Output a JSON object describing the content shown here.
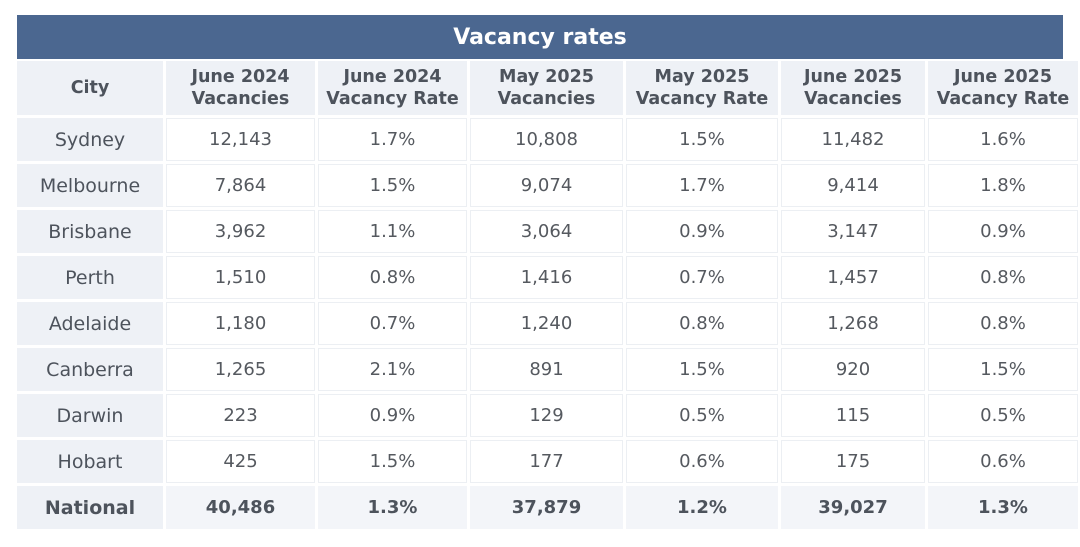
{
  "table": {
    "title": "Vacancy rates",
    "headers": [
      "City",
      "June 2024\nVacancies",
      "June 2024\nVacancy Rate",
      "May 2025\nVacancies",
      "May 2025\nVacancy Rate",
      "June 2025\nVacancies",
      "June 2025\nVacancy Rate"
    ],
    "rows": [
      [
        "Sydney",
        "12,143",
        "1.7%",
        "10,808",
        "1.5%",
        "11,482",
        "1.6%"
      ],
      [
        "Melbourne",
        "7,864",
        "1.5%",
        "9,074",
        "1.7%",
        "9,414",
        "1.8%"
      ],
      [
        "Brisbane",
        "3,962",
        "1.1%",
        "3,064",
        "0.9%",
        "3,147",
        "0.9%"
      ],
      [
        "Perth",
        "1,510",
        "0.8%",
        "1,416",
        "0.7%",
        "1,457",
        "0.8%"
      ],
      [
        "Adelaide",
        "1,180",
        "0.7%",
        "1,240",
        "0.8%",
        "1,268",
        "0.8%"
      ],
      [
        "Canberra",
        "1,265",
        "2.1%",
        "891",
        "1.5%",
        "920",
        "1.5%"
      ],
      [
        "Darwin",
        "223",
        "0.9%",
        "129",
        "0.5%",
        "115",
        "0.5%"
      ],
      [
        "Hobart",
        "425",
        "1.5%",
        "177",
        "0.6%",
        "175",
        "0.6%"
      ]
    ],
    "total": [
      "National",
      "40,486",
      "1.3%",
      "37,879",
      "1.2%",
      "39,027",
      "1.3%"
    ]
  },
  "colors": {
    "title_bar": "#4b6790",
    "header_bg": "#eef1f6",
    "text": "#4d535c"
  }
}
